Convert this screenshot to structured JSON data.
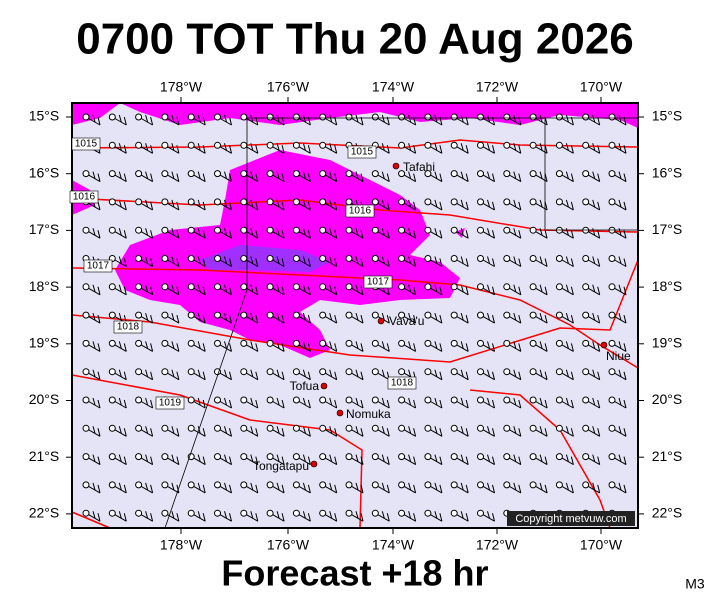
{
  "header": {
    "title": "0700 TOT Thu 20 Aug 2026"
  },
  "footer": {
    "forecast": "Forecast +18 hr",
    "code": "M3"
  },
  "map": {
    "lon_labels": [
      "178°W",
      "176°W",
      "174°W",
      "172°W",
      "170°W"
    ],
    "lat_labels": [
      "15°S",
      "16°S",
      "17°S",
      "18°S",
      "19°S",
      "20°S",
      "21°S",
      "22°S"
    ],
    "isobar_labels": [
      "1015",
      "1015",
      "1016",
      "1016",
      "1017",
      "1017",
      "1018",
      "1018",
      "1019"
    ],
    "places": [
      "Tafahi",
      "Vava'u",
      "Niue",
      "Tofua",
      "Nomuka",
      "Tongatapu"
    ],
    "credit": "Copyright metvuw.com"
  }
}
